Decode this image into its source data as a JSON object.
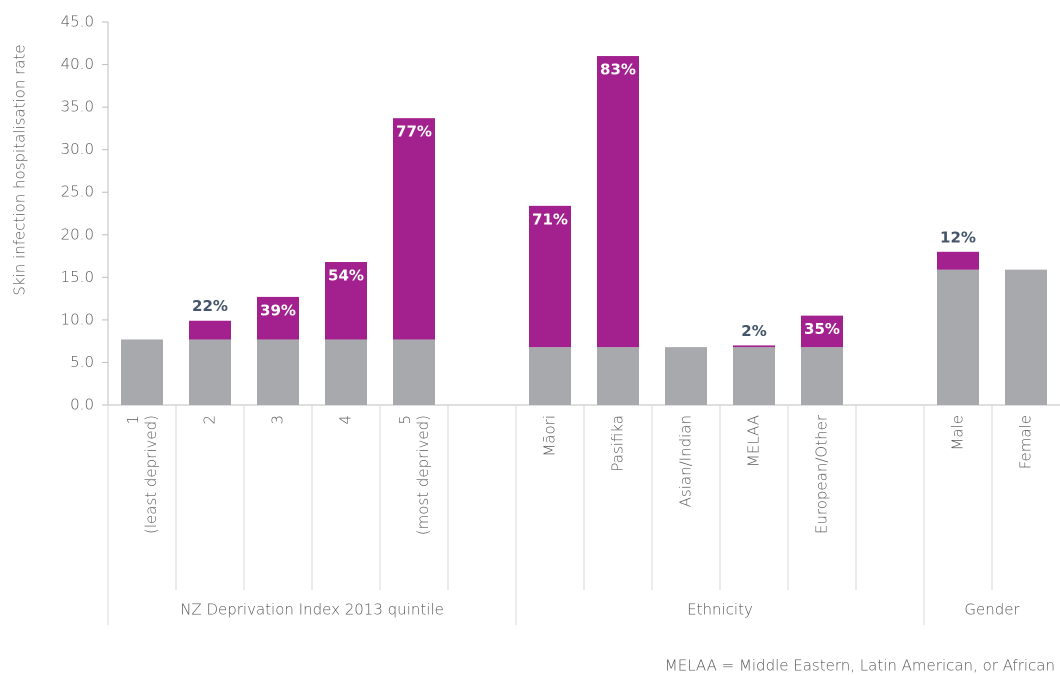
{
  "chart_data": {
    "type": "stacked-bar",
    "y_label": "Skin infection hospitalisation rate",
    "groups": [
      {
        "label": "NZ Deprivation Index 2013 quintile",
        "categories": [
          "1\n(least deprived)",
          "2",
          "3",
          "4",
          "5\n(most deprived)",
          null
        ]
      },
      {
        "label": "Ethnicity",
        "categories": [
          "Māori",
          "Pasifika",
          "Asian/Indian",
          "MELAA",
          "European/Other",
          null
        ]
      },
      {
        "label": "Gender",
        "categories": [
          "Male",
          "Female"
        ]
      }
    ],
    "series": [
      {
        "color": "#a7a9ac",
        "values": [
          7.7,
          7.7,
          7.7,
          7.7,
          7.7,
          null,
          6.8,
          6.8,
          6.8,
          6.8,
          6.8,
          null,
          15.9,
          15.9
        ]
      },
      {
        "color": "#a3218e",
        "values": [
          null,
          2.2,
          5.0,
          9.1,
          26.0,
          null,
          16.6,
          34.2,
          null,
          0.2,
          3.7,
          null,
          2.1,
          null
        ],
        "share_labels": [
          null,
          "22%",
          "39%",
          "54%",
          "77%",
          null,
          "71%",
          "83%",
          null,
          "2%",
          "35%",
          null,
          "12%",
          null
        ],
        "label_colors": [
          null,
          "#44546a",
          "#ffffff",
          "#ffffff",
          "#ffffff",
          null,
          "#ffffff",
          "#ffffff",
          null,
          "#44546a",
          "#ffffff",
          null,
          "#44546a",
          null
        ]
      }
    ],
    "ylim": [
      0,
      45
    ],
    "yticks": [
      {
        "value": 0,
        "label": "0.0"
      },
      {
        "value": 5,
        "label": "5.0"
      },
      {
        "value": 10,
        "label": "10.0"
      },
      {
        "value": 15,
        "label": "15.0"
      },
      {
        "value": 20,
        "label": "20.0"
      },
      {
        "value": 25,
        "label": "25.0"
      },
      {
        "value": 30,
        "label": "30.0"
      },
      {
        "value": 35,
        "label": "35.0"
      },
      {
        "value": 40,
        "label": "40.0"
      },
      {
        "value": 45,
        "label": "45.0"
      }
    ],
    "note": "MELAA = Middle Eastern, Latin American, or African"
  }
}
